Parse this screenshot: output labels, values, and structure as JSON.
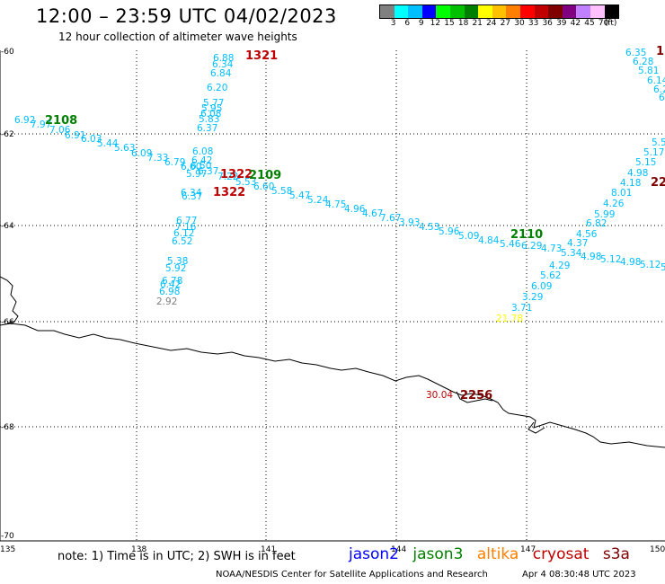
{
  "header": {
    "title": "12:00 – 23:59 UTC 04/02/2023",
    "subtitle": "12 hour collection of altimeter wave heights"
  },
  "colorbar": {
    "colors": [
      "#808080",
      "#00ffff",
      "#00bfff",
      "#0000ff",
      "#00ff00",
      "#00c000",
      "#008000",
      "#ffff00",
      "#ffc000",
      "#ff8000",
      "#ff0000",
      "#c00000",
      "#800000",
      "#800080",
      "#c080ff",
      "#ffc0ff",
      "#000000"
    ],
    "labels": [
      "3",
      "6",
      "9",
      "12",
      "15",
      "18",
      "21",
      "24",
      "27",
      "30",
      "33",
      "36",
      "39",
      "42",
      "45",
      "70",
      "(ft)"
    ]
  },
  "axes": {
    "lat_labels": [
      "-60",
      "-62",
      "-64",
      "-66",
      "-68",
      "-70"
    ],
    "lon_labels": [
      "135",
      "138",
      "141",
      "144",
      "147",
      "150"
    ]
  },
  "tracks": {
    "pass_ids": [
      {
        "text": "2108",
        "color": "#008000"
      },
      {
        "text": "1321",
        "color": "#c00000"
      },
      {
        "text": "1322",
        "color": "#c00000"
      },
      {
        "text": "1322",
        "color": "#c00000"
      },
      {
        "text": "2109",
        "color": "#008000"
      },
      {
        "text": "2110",
        "color": "#008000"
      },
      {
        "text": "22",
        "color": "#800000"
      },
      {
        "text": "1",
        "color": "#800000"
      },
      {
        "text": "2256",
        "color": "#800000"
      }
    ],
    "values": [
      {
        "text": "6.92",
        "color": "#00bfff"
      },
      {
        "text": "7.97",
        "color": "#00bfff"
      },
      {
        "text": "7.06",
        "color": "#00bfff"
      },
      {
        "text": "6.91",
        "color": "#00bfff"
      },
      {
        "text": "6.03",
        "color": "#00bfff"
      },
      {
        "text": "5.44",
        "color": "#00bfff"
      },
      {
        "text": "5.63",
        "color": "#00bfff"
      },
      {
        "text": "6.09",
        "color": "#00bfff"
      },
      {
        "text": "7.33",
        "color": "#00bfff"
      },
      {
        "text": "6.79",
        "color": "#00bfff"
      },
      {
        "text": "6.60",
        "color": "#00bfff"
      },
      {
        "text": "6.37",
        "color": "#00bfff"
      },
      {
        "text": "7.22",
        "color": "#00bfff"
      },
      {
        "text": "5.53",
        "color": "#00bfff"
      },
      {
        "text": "6.60",
        "color": "#00bfff"
      },
      {
        "text": "5.58",
        "color": "#00bfff"
      },
      {
        "text": "5.47",
        "color": "#00bfff"
      },
      {
        "text": "5.24",
        "color": "#00bfff"
      },
      {
        "text": "4.75",
        "color": "#00bfff"
      },
      {
        "text": "4.96",
        "color": "#00bfff"
      },
      {
        "text": "4.67",
        "color": "#00bfff"
      },
      {
        "text": "7.67",
        "color": "#00bfff"
      },
      {
        "text": "3.93",
        "color": "#00bfff"
      },
      {
        "text": "4.53",
        "color": "#00bfff"
      },
      {
        "text": "5.96",
        "color": "#00bfff"
      },
      {
        "text": "5.09",
        "color": "#00bfff"
      },
      {
        "text": "4.84",
        "color": "#00bfff"
      },
      {
        "text": "5.46",
        "color": "#00bfff"
      },
      {
        "text": "6.29",
        "color": "#00bfff"
      },
      {
        "text": "4.73",
        "color": "#00bfff"
      },
      {
        "text": "5.34",
        "color": "#00bfff"
      },
      {
        "text": "4.98",
        "color": "#00bfff"
      },
      {
        "text": "5.12",
        "color": "#00bfff"
      },
      {
        "text": "4.98",
        "color": "#00bfff"
      },
      {
        "text": "5.12",
        "color": "#00bfff"
      },
      {
        "text": "5",
        "color": "#00bfff"
      },
      {
        "text": "6.88",
        "color": "#00bfff"
      },
      {
        "text": "6.34",
        "color": "#00bfff"
      },
      {
        "text": "6.84",
        "color": "#00bfff"
      },
      {
        "text": "6.20",
        "color": "#00bfff"
      },
      {
        "text": "5.77",
        "color": "#00bfff"
      },
      {
        "text": "5.95",
        "color": "#00bfff"
      },
      {
        "text": "6.08",
        "color": "#00bfff"
      },
      {
        "text": "5.83",
        "color": "#00bfff"
      },
      {
        "text": "6.37",
        "color": "#00bfff"
      },
      {
        "text": "6.08",
        "color": "#00bfff"
      },
      {
        "text": "6.42",
        "color": "#00bfff"
      },
      {
        "text": "6.50",
        "color": "#00bfff"
      },
      {
        "text": "5.97",
        "color": "#00bfff"
      },
      {
        "text": "6.34",
        "color": "#00bfff"
      },
      {
        "text": "6.37",
        "color": "#00bfff"
      },
      {
        "text": "6.77",
        "color": "#00bfff"
      },
      {
        "text": "7.16",
        "color": "#00bfff"
      },
      {
        "text": "6.12",
        "color": "#00bfff"
      },
      {
        "text": "6.52",
        "color": "#00bfff"
      },
      {
        "text": "5.38",
        "color": "#00bfff"
      },
      {
        "text": "5.92",
        "color": "#00bfff"
      },
      {
        "text": "6.78",
        "color": "#00bfff"
      },
      {
        "text": "6.42",
        "color": "#00bfff"
      },
      {
        "text": "6.98",
        "color": "#00bfff"
      },
      {
        "text": "2.92",
        "color": "#808080"
      },
      {
        "text": "6.35",
        "color": "#00bfff"
      },
      {
        "text": "6.28",
        "color": "#00bfff"
      },
      {
        "text": "5.81",
        "color": "#00bfff"
      },
      {
        "text": "6.14",
        "color": "#00bfff"
      },
      {
        "text": "6.2",
        "color": "#00bfff"
      },
      {
        "text": "6",
        "color": "#00bfff"
      },
      {
        "text": "5.5",
        "color": "#00bfff"
      },
      {
        "text": "5.17",
        "color": "#00bfff"
      },
      {
        "text": "5.15",
        "color": "#00bfff"
      },
      {
        "text": "4.98",
        "color": "#00bfff"
      },
      {
        "text": "4.18",
        "color": "#00bfff"
      },
      {
        "text": "8.01",
        "color": "#00bfff"
      },
      {
        "text": "4.26",
        "color": "#00bfff"
      },
      {
        "text": "5.99",
        "color": "#00bfff"
      },
      {
        "text": "6.82",
        "color": "#00bfff"
      },
      {
        "text": "4.56",
        "color": "#00bfff"
      },
      {
        "text": "4.37",
        "color": "#00bfff"
      },
      {
        "text": "4.29",
        "color": "#00bfff"
      },
      {
        "text": "5.62",
        "color": "#00bfff"
      },
      {
        "text": "6.09",
        "color": "#00bfff"
      },
      {
        "text": "3.29",
        "color": "#00bfff"
      },
      {
        "text": "3.71",
        "color": "#00bfff"
      },
      {
        "text": "21.78",
        "color": "#ffff00"
      },
      {
        "text": "30.04",
        "color": "#c00000"
      }
    ]
  },
  "note": "note: 1) Time is in UTC; 2) SWH is in feet",
  "satellites": [
    {
      "name": "jason2",
      "color": "#0000ff"
    },
    {
      "name": "jason3",
      "color": "#008000"
    },
    {
      "name": "altika",
      "color": "#ff8000"
    },
    {
      "name": "cryosat",
      "color": "#c00000"
    },
    {
      "name": "s3a",
      "color": "#800000"
    }
  ],
  "footer": {
    "credit": "NOAA/NESDIS Center for Satellite Applications and Research",
    "timestamp": "Apr  4 08:30:48 UTC 2023"
  }
}
